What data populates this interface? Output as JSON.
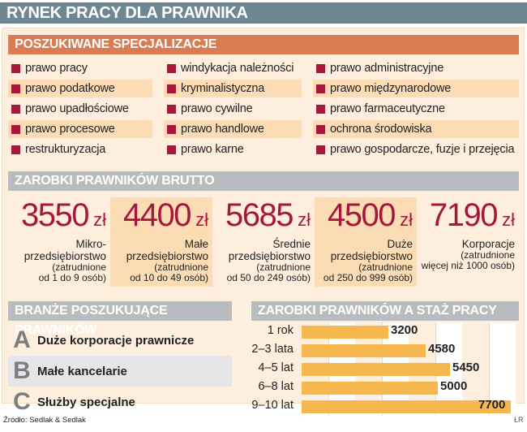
{
  "title": "RYNEK PRACY DLA PRAWNIKA",
  "specializations": {
    "heading": "POSZUKIWANE SPECJALIZACJE",
    "columns": [
      [
        "prawo pracy",
        "prawo podatkowe",
        "prawo upadłościowe",
        "prawo procesowe",
        "restrukturyzacja"
      ],
      [
        "windykacja należności",
        "kryminalistyczna",
        "prawo cywilne",
        "prawo handlowe",
        "prawo karne"
      ],
      [
        "prawo administracyjne",
        "prawo międzynarodowe",
        "prawo farmaceutyczne",
        "ochrona środowiska",
        "prawo gospodarcze, fuzje i przejęcia"
      ]
    ],
    "bullet_color": "#a6173c"
  },
  "salaries": {
    "heading": "ZAROBKI PRAWNIKÓW BRUTTO",
    "currency": "zł",
    "items": [
      {
        "amount": "3550",
        "l1": "Mikro-",
        "l2": "przedsiębiorstwo",
        "l3": "(zatrudnione",
        "l4": "od 1 do 9 osób)"
      },
      {
        "amount": "4400",
        "l1": "Małe",
        "l2": "przedsiębiorstwo",
        "l3": "(zatrudnione",
        "l4": "od 10 do 49 osób)"
      },
      {
        "amount": "5685",
        "l1": "Średnie",
        "l2": "przedsiębiorstwo",
        "l3": "(zatrudnione",
        "l4": "od 50 do 249 osób)"
      },
      {
        "amount": "4500",
        "l1": "Duże",
        "l2": "przedsiębiorstwo",
        "l3": "(zatrudnione",
        "l4": "od 250 do 999 osób)"
      },
      {
        "amount": "7190",
        "l1": "Korporacje",
        "l2": "",
        "l3": "(zatrudnione",
        "l4": "więcej niż 1000 osób)"
      }
    ]
  },
  "industries": {
    "heading": "BRANŻE POSZUKUJĄCE PRAWNIKÓW",
    "items": [
      {
        "letter": "A",
        "label": "Duże korporacje prawnicze"
      },
      {
        "letter": "B",
        "label": "Małe kancelarie"
      },
      {
        "letter": "C",
        "label": "Służby specjalne"
      }
    ]
  },
  "source": "Źródło: Sedlak & Sedlak",
  "credit": "ŁR",
  "chart_data": {
    "type": "bar",
    "orientation": "horizontal",
    "title": "ZAROBKI PRAWNIKÓW A STAŻ PRACY",
    "categories": [
      "1 rok",
      "2–3 lata",
      "4–5 lat",
      "6–8 lat",
      "9–10 lat"
    ],
    "values": [
      3200,
      4580,
      5450,
      5000,
      7700
    ],
    "xlabel": "",
    "ylabel": "",
    "xlim": [
      0,
      7900
    ],
    "grid": true,
    "bar_color": "#f6b74f",
    "data_labels": true
  }
}
